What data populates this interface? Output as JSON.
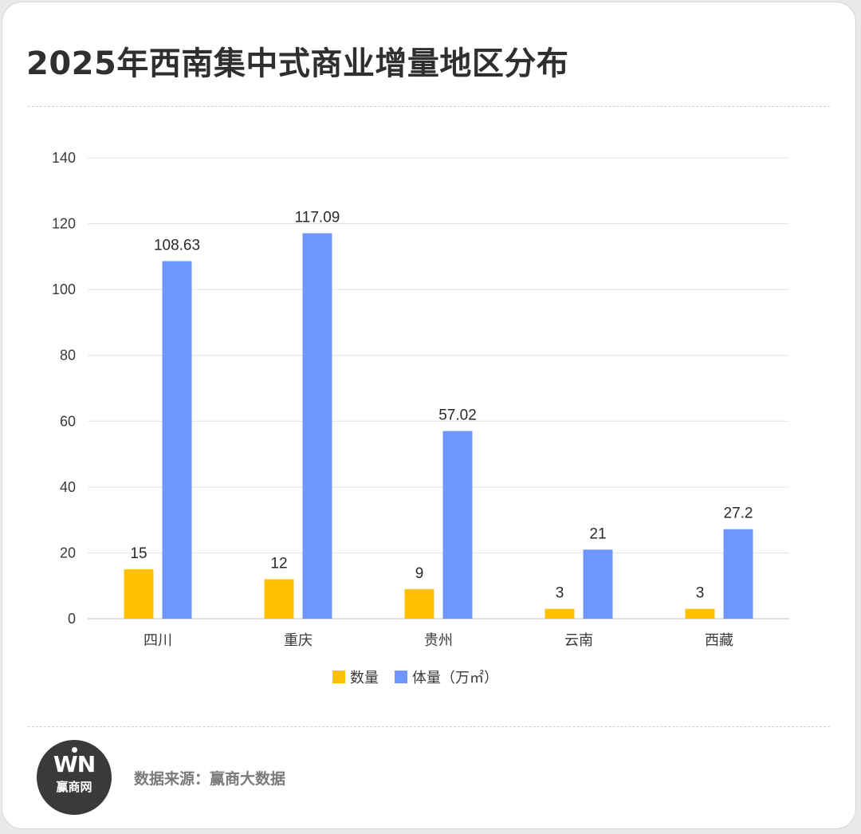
{
  "title": "2025年西南集中式商业增量地区分布",
  "source_text": "数据来源：赢商大数据",
  "logo": {
    "mark": "WN",
    "name": "赢商网"
  },
  "colors": {
    "series_count": "#FFC000",
    "series_volume": "#6F96FF",
    "grid": "#e3e3e3",
    "axis": "#bfbfbf"
  },
  "chart_data": {
    "type": "bar",
    "categories": [
      "四川",
      "重庆",
      "贵州",
      "云南",
      "西藏"
    ],
    "series": [
      {
        "name": "数量",
        "values": [
          15,
          12,
          9,
          3,
          3
        ],
        "labels": [
          "15",
          "12",
          "9",
          "3",
          "3"
        ]
      },
      {
        "name": "体量（万㎡）",
        "values": [
          108.63,
          117.09,
          57.02,
          21,
          27.2
        ],
        "labels": [
          "108.63",
          "117.09",
          "57.02",
          "21",
          "27.2"
        ]
      }
    ],
    "ylim": [
      0,
      140
    ],
    "yticks": [
      0,
      20,
      40,
      60,
      80,
      100,
      120,
      140
    ],
    "grid": true,
    "legend": "bottom"
  }
}
